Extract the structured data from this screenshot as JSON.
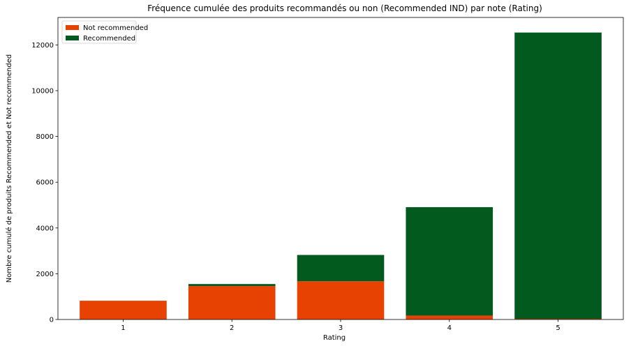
{
  "chart_data": {
    "type": "bar",
    "stacked": true,
    "title": "Fréquence cumulée des produits recommandés ou non (Recommended IND) par note (Rating)",
    "xlabel": "Rating",
    "ylabel": "Nombre cumulé de produits Recommended et Not recommended",
    "categories": [
      "1",
      "2",
      "3",
      "4",
      "5"
    ],
    "series": [
      {
        "name": "Not recommended",
        "color": "#e84203",
        "values": [
          820,
          1460,
          1670,
          170,
          30
        ]
      },
      {
        "name": "Recommended",
        "color": "#025a1e",
        "values": [
          0,
          90,
          1150,
          4740,
          12510
        ]
      }
    ],
    "ylim": [
      0,
      13200
    ],
    "yticks": [
      0,
      2000,
      4000,
      6000,
      8000,
      10000,
      12000
    ],
    "grid": false,
    "legend_position": "top-left"
  }
}
